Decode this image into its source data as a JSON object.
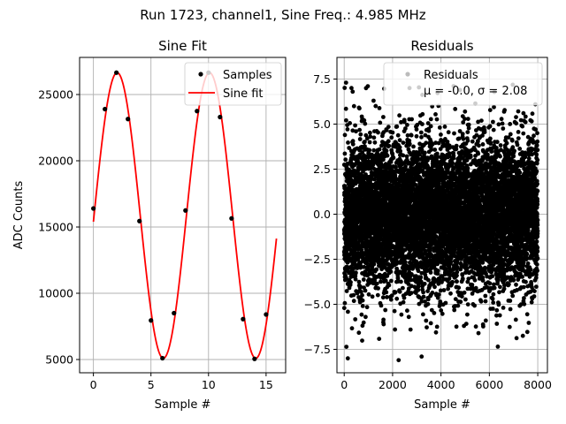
{
  "figure": {
    "suptitle": "Run 1723, channel1, Sine Freq.: 4.985 MHz"
  },
  "chart_data": [
    {
      "type": "scatter+line",
      "title": "Sine Fit",
      "xlabel": "Sample #",
      "ylabel": "ADC Counts",
      "xlim": [
        -1.2,
        16.7
      ],
      "ylim": [
        4000,
        27800
      ],
      "grid": true,
      "legend_placement": "top-right",
      "legend_entries": [
        "Samples",
        "Sine fit"
      ],
      "xticks": [
        0,
        5,
        10,
        15
      ],
      "xtick_labels": [
        "0",
        "5",
        "10",
        "15"
      ],
      "yticks": [
        5000,
        10000,
        15000,
        20000,
        25000
      ],
      "ytick_labels": [
        "5000",
        "10000",
        "15000",
        "20000",
        "25000"
      ],
      "samples": {
        "name": "Samples",
        "color": "#000000",
        "x": [
          0,
          1,
          2,
          3,
          4,
          5,
          6,
          7,
          8,
          9,
          10,
          11,
          12,
          13,
          14,
          15
        ],
        "y": [
          16400,
          23900,
          26650,
          23150,
          15450,
          7950,
          5100,
          8500,
          16250,
          23750,
          26650,
          23300,
          15650,
          8050,
          5050,
          8400
        ]
      },
      "fit": {
        "name": "Sine fit",
        "color": "#ff0000",
        "model": "offset + amplitude*sin(2*pi*cycles_per_sample*x + phase)",
        "offset": 15870,
        "amplitude": 10780,
        "cycles_per_sample": 0.1246,
        "phase": -0.0437,
        "x_range": [
          0,
          15.9
        ]
      }
    },
    {
      "type": "scatter",
      "title": "Residuals",
      "xlabel": "Sample #",
      "ylabel": "",
      "xlim": [
        -300,
        8400
      ],
      "ylim": [
        -8.8,
        8.7
      ],
      "grid": true,
      "legend_placement": "top-right",
      "legend_entries": [
        "Residuals",
        "μ = -0.0, σ = 2.08"
      ],
      "xticks": [
        0,
        2000,
        4000,
        6000,
        8000
      ],
      "xtick_labels": [
        "0",
        "2000",
        "4000",
        "6000",
        "8000"
      ],
      "yticks": [
        -7.5,
        -5.0,
        -2.5,
        0.0,
        2.5,
        5.0,
        7.5
      ],
      "ytick_labels": [
        "−7.5",
        "−5.0",
        "−2.5",
        "0.0",
        "2.5",
        "5.0",
        "7.5"
      ],
      "residuals": {
        "name": "Residuals",
        "color": "#000000",
        "count": 8000,
        "x_range": [
          0,
          7999
        ],
        "mean": -0.0,
        "std": 2.08,
        "outliers": [
          {
            "x": 150,
            "y": -8.0
          },
          {
            "x": 300,
            "y": 7.0
          },
          {
            "x": 2250,
            "y": -8.1
          },
          {
            "x": 3200,
            "y": -7.9
          },
          {
            "x": 6350,
            "y": -7.35
          },
          {
            "x": 2700,
            "y": 7.0
          },
          {
            "x": 5550,
            "y": -6.6
          },
          {
            "x": 350,
            "y": 6.8
          },
          {
            "x": 7900,
            "y": 6.1
          },
          {
            "x": 2100,
            "y": -6.4
          },
          {
            "x": 4950,
            "y": -6.2
          },
          {
            "x": 1300,
            "y": 6.0
          }
        ]
      },
      "legend_stat_text": "μ = -0.0, σ = 2.08"
    }
  ],
  "icons": {
    "samples_marker": "filled-black-dot",
    "fit_line": "red-line-segment",
    "residual_marker": "filled-black-dot-gray-legend"
  }
}
